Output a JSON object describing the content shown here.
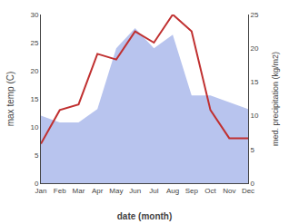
{
  "chart_data": {
    "type": "line",
    "categories": [
      "Jan",
      "Feb",
      "Mar",
      "Apr",
      "May",
      "Jun",
      "Jul",
      "Aug",
      "Sep",
      "Oct",
      "Nov",
      "Dec"
    ],
    "series": [
      {
        "type": "line",
        "color": "#c03030",
        "values": [
          7,
          13,
          14,
          23,
          22,
          27,
          25,
          30,
          27,
          13,
          8,
          8
        ]
      },
      {
        "type": "area",
        "color": "#b8c4ee",
        "axis": "y2",
        "values": [
          10,
          9,
          9,
          11,
          20,
          23,
          20,
          22,
          13,
          13,
          12,
          11
        ]
      }
    ],
    "xlabel": "date (month)",
    "ylabel": "max temp (C)",
    "y2label": "med. precipitation (kg/m2)",
    "ylim": [
      0,
      30
    ],
    "yticks": [
      0,
      5,
      10,
      15,
      20,
      25,
      30
    ],
    "y2lim": [
      0,
      25
    ],
    "y2ticks": [
      0,
      5,
      10,
      15,
      20,
      25
    ],
    "grid": false
  }
}
